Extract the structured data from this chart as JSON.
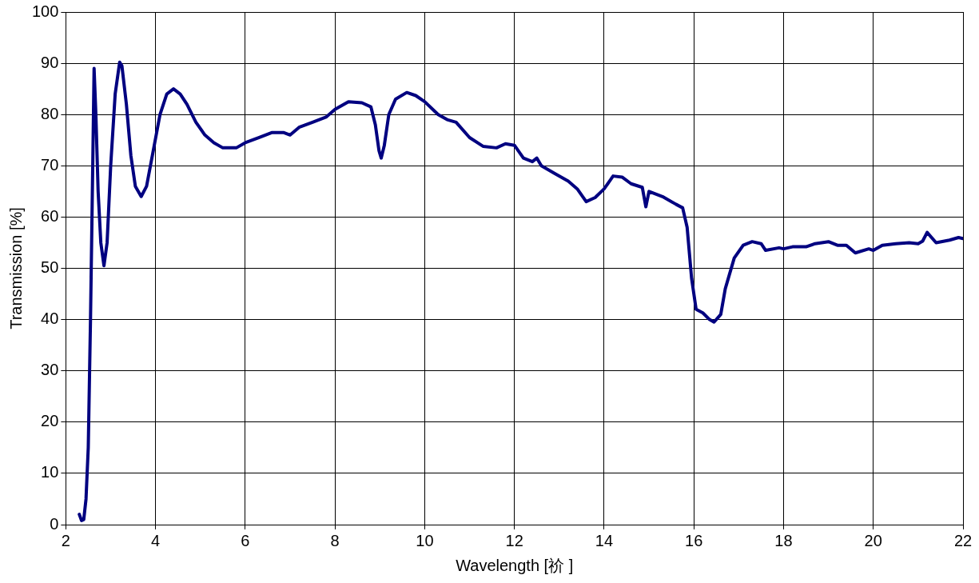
{
  "chart_data": {
    "type": "line",
    "xlabel": "Wavelength [祄 ]",
    "ylabel": "Transmission [%]",
    "xlim": [
      2,
      22
    ],
    "xticks": [
      2,
      4,
      6,
      8,
      10,
      12,
      14,
      16,
      18,
      20,
      22
    ],
    "ylim": [
      0,
      100
    ],
    "yticks": [
      0,
      10,
      20,
      30,
      40,
      50,
      60,
      70,
      80,
      90,
      100
    ],
    "grid": true,
    "marker": "none",
    "line_style": "solid",
    "series": [
      {
        "color": "#000080",
        "x": [
          2.3,
          2.35,
          2.4,
          2.45,
          2.5,
          2.55,
          2.6,
          2.63,
          2.67,
          2.72,
          2.78,
          2.85,
          2.92,
          3.0,
          3.1,
          3.2,
          3.25,
          3.35,
          3.45,
          3.55,
          3.68,
          3.8,
          3.95,
          4.1,
          4.25,
          4.4,
          4.55,
          4.7,
          4.9,
          5.1,
          5.3,
          5.5,
          5.8,
          6.0,
          6.3,
          6.6,
          6.85,
          7.0,
          7.2,
          7.5,
          7.8,
          8.0,
          8.3,
          8.6,
          8.8,
          8.9,
          8.98,
          9.03,
          9.1,
          9.2,
          9.35,
          9.6,
          9.8,
          10.0,
          10.3,
          10.5,
          10.7,
          11.0,
          11.3,
          11.6,
          11.8,
          12.0,
          12.2,
          12.4,
          12.5,
          12.6,
          12.9,
          13.2,
          13.4,
          13.6,
          13.8,
          14.0,
          14.2,
          14.4,
          14.6,
          14.85,
          14.93,
          15.0,
          15.3,
          15.6,
          15.75,
          15.85,
          15.95,
          16.05,
          16.2,
          16.35,
          16.45,
          16.6,
          16.7,
          16.9,
          17.1,
          17.3,
          17.5,
          17.6,
          17.9,
          18.0,
          18.2,
          18.5,
          18.7,
          19.0,
          19.2,
          19.4,
          19.6,
          19.9,
          20.0,
          20.2,
          20.5,
          20.8,
          21.0,
          21.1,
          21.2,
          21.4,
          21.7,
          21.9,
          22
        ],
        "values": [
          2,
          0.8,
          1,
          5,
          15,
          40,
          70,
          89,
          80,
          65,
          55,
          50.5,
          55,
          70,
          84,
          90.2,
          89.5,
          82,
          72,
          66,
          64,
          66,
          73,
          80,
          84,
          85,
          84,
          82,
          78.5,
          76,
          74.5,
          73.5,
          73.5,
          74.5,
          75.5,
          76.5,
          76.5,
          76,
          77.5,
          78.5,
          79.5,
          81,
          82.5,
          82.3,
          81.5,
          78,
          73,
          71.5,
          74,
          80,
          83,
          84.3,
          83.7,
          82.5,
          80,
          79,
          78.5,
          75.5,
          73.8,
          73.5,
          74.3,
          74,
          71.5,
          70.8,
          71.5,
          70,
          68.5,
          67,
          65.5,
          63,
          63.8,
          65.5,
          68,
          67.8,
          66.5,
          65.8,
          62,
          65,
          64,
          62.5,
          61.8,
          58,
          48,
          42,
          41.3,
          40,
          39.5,
          41,
          46,
          52,
          54.5,
          55.2,
          54.8,
          53.5,
          54,
          53.8,
          54.2,
          54.2,
          54.8,
          55.2,
          54.5,
          54.5,
          53,
          53.8,
          53.5,
          54.5,
          54.8,
          55,
          54.8,
          55.3,
          57,
          55,
          55.5,
          56,
          55.8
        ]
      }
    ]
  }
}
